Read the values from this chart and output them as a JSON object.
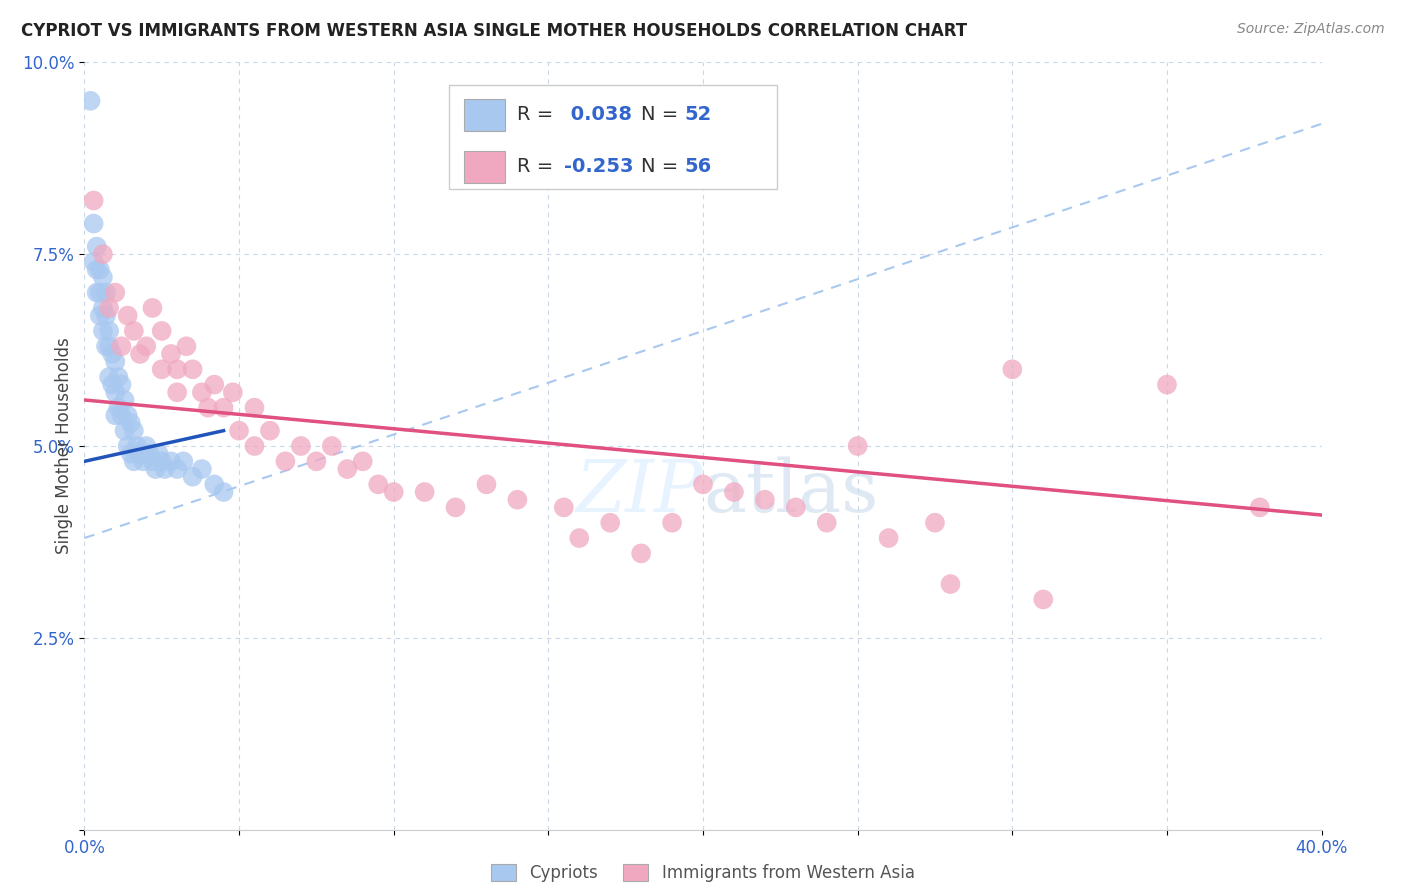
{
  "title": "CYPRIOT VS IMMIGRANTS FROM WESTERN ASIA SINGLE MOTHER HOUSEHOLDS CORRELATION CHART",
  "source": "Source: ZipAtlas.com",
  "ylabel": "Single Mother Households",
  "x_min": 0.0,
  "x_max": 0.4,
  "y_min": 0.0,
  "y_max": 0.1,
  "x_ticks": [
    0.0,
    0.05,
    0.1,
    0.15,
    0.2,
    0.25,
    0.3,
    0.35,
    0.4
  ],
  "x_tick_labels": [
    "0.0%",
    "",
    "",
    "",
    "",
    "",
    "",
    "",
    "40.0%"
  ],
  "y_ticks": [
    0.0,
    0.025,
    0.05,
    0.075,
    0.1
  ],
  "y_tick_labels": [
    "",
    "2.5%",
    "5.0%",
    "7.5%",
    "10.0%"
  ],
  "r_cypriot": 0.038,
  "n_cypriot": 52,
  "r_immigrant": -0.253,
  "n_immigrant": 56,
  "cypriot_color": "#a8c8f0",
  "immigrant_color": "#f0a8c0",
  "cypriot_line_color": "#2255bb",
  "immigrant_line_color": "#e05080",
  "dash_line_color": "#a8c8f0",
  "watermark_color": "#ddeeff",
  "text_color": "#3366cc",
  "label_color": "#3366cc",
  "cypriot_x": [
    0.002,
    0.003,
    0.003,
    0.004,
    0.004,
    0.004,
    0.005,
    0.005,
    0.005,
    0.006,
    0.006,
    0.006,
    0.007,
    0.007,
    0.007,
    0.008,
    0.008,
    0.008,
    0.009,
    0.009,
    0.01,
    0.01,
    0.01,
    0.011,
    0.011,
    0.012,
    0.012,
    0.013,
    0.013,
    0.014,
    0.014,
    0.015,
    0.015,
    0.016,
    0.016,
    0.017,
    0.018,
    0.019,
    0.02,
    0.021,
    0.022,
    0.023,
    0.024,
    0.025,
    0.026,
    0.028,
    0.03,
    0.032,
    0.035,
    0.038,
    0.042,
    0.045
  ],
  "cypriot_y": [
    0.095,
    0.079,
    0.074,
    0.076,
    0.073,
    0.07,
    0.073,
    0.07,
    0.067,
    0.072,
    0.068,
    0.065,
    0.07,
    0.067,
    0.063,
    0.065,
    0.063,
    0.059,
    0.062,
    0.058,
    0.061,
    0.057,
    0.054,
    0.059,
    0.055,
    0.058,
    0.054,
    0.056,
    0.052,
    0.054,
    0.05,
    0.053,
    0.049,
    0.052,
    0.048,
    0.05,
    0.049,
    0.048,
    0.05,
    0.049,
    0.048,
    0.047,
    0.049,
    0.048,
    0.047,
    0.048,
    0.047,
    0.048,
    0.046,
    0.047,
    0.045,
    0.044
  ],
  "immigrant_x": [
    0.003,
    0.006,
    0.008,
    0.01,
    0.012,
    0.014,
    0.016,
    0.018,
    0.02,
    0.022,
    0.025,
    0.025,
    0.028,
    0.03,
    0.03,
    0.033,
    0.035,
    0.038,
    0.04,
    0.042,
    0.045,
    0.048,
    0.05,
    0.055,
    0.055,
    0.06,
    0.065,
    0.07,
    0.075,
    0.08,
    0.085,
    0.09,
    0.095,
    0.1,
    0.11,
    0.12,
    0.13,
    0.14,
    0.155,
    0.17,
    0.19,
    0.21,
    0.23,
    0.25,
    0.275,
    0.3,
    0.16,
    0.18,
    0.2,
    0.22,
    0.24,
    0.26,
    0.28,
    0.31,
    0.35,
    0.38
  ],
  "immigrant_y": [
    0.082,
    0.075,
    0.068,
    0.07,
    0.063,
    0.067,
    0.065,
    0.062,
    0.063,
    0.068,
    0.065,
    0.06,
    0.062,
    0.06,
    0.057,
    0.063,
    0.06,
    0.057,
    0.055,
    0.058,
    0.055,
    0.057,
    0.052,
    0.055,
    0.05,
    0.052,
    0.048,
    0.05,
    0.048,
    0.05,
    0.047,
    0.048,
    0.045,
    0.044,
    0.044,
    0.042,
    0.045,
    0.043,
    0.042,
    0.04,
    0.04,
    0.044,
    0.042,
    0.05,
    0.04,
    0.06,
    0.038,
    0.036,
    0.045,
    0.043,
    0.04,
    0.038,
    0.032,
    0.03,
    0.058,
    0.042
  ],
  "cypriot_trend_x": [
    0.0,
    0.045
  ],
  "cypriot_trend_y": [
    0.048,
    0.052
  ],
  "immigrant_trend_x": [
    0.0,
    0.4
  ],
  "immigrant_trend_y": [
    0.056,
    0.041
  ],
  "dash_trend_x": [
    0.0,
    0.4
  ],
  "dash_trend_y": [
    0.038,
    0.092
  ]
}
